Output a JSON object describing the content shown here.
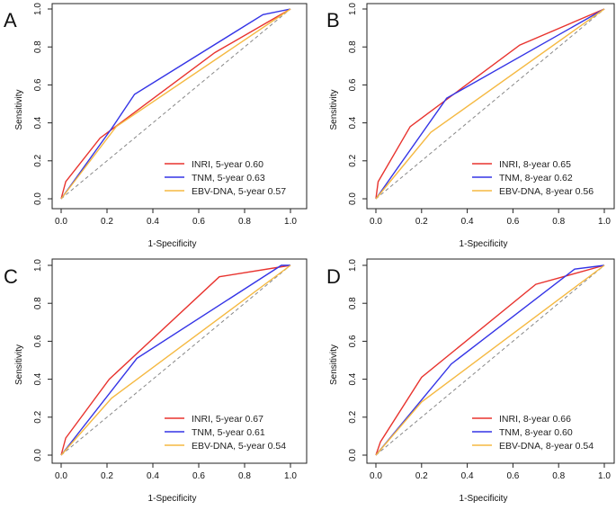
{
  "chart_data": [
    {
      "type": "line",
      "panel_label": "A",
      "xlabel": "1-Specificity",
      "ylabel": "Sensitivity",
      "xlim": [
        0,
        1
      ],
      "ylim": [
        0,
        1
      ],
      "ticks": [
        "0.0",
        "0.2",
        "0.4",
        "0.6",
        "0.8",
        "1.0"
      ],
      "tick_values": [
        0,
        0.2,
        0.4,
        0.6,
        0.8,
        1.0
      ],
      "legend_position": "bottom-right",
      "reference_line": {
        "style": "dashed",
        "points": [
          [
            0,
            0
          ],
          [
            1,
            1
          ]
        ]
      },
      "series": [
        {
          "name": "INRI, 5-year",
          "auc": "0.60",
          "color": "#e8332e",
          "points": [
            [
              0,
              0
            ],
            [
              0.02,
              0.09
            ],
            [
              0.17,
              0.32
            ],
            [
              0.67,
              0.77
            ],
            [
              1,
              1
            ]
          ]
        },
        {
          "name": "TNM, 5-year",
          "auc": "0.63",
          "color": "#3434e6",
          "points": [
            [
              0,
              0
            ],
            [
              0.22,
              0.37
            ],
            [
              0.32,
              0.55
            ],
            [
              0.88,
              0.97
            ],
            [
              1,
              1
            ]
          ]
        },
        {
          "name": "EBV-DNA, 5-year",
          "auc": "0.57",
          "color": "#f5b942",
          "points": [
            [
              0,
              0
            ],
            [
              0.24,
              0.38
            ],
            [
              1,
              1
            ]
          ]
        }
      ]
    },
    {
      "type": "line",
      "panel_label": "B",
      "xlabel": "1-Specificity",
      "ylabel": "Sensitivity",
      "xlim": [
        0,
        1
      ],
      "ylim": [
        0,
        1
      ],
      "ticks": [
        "0.0",
        "0.2",
        "0.4",
        "0.6",
        "0.8",
        "1.0"
      ],
      "tick_values": [
        0,
        0.2,
        0.4,
        0.6,
        0.8,
        1.0
      ],
      "legend_position": "bottom-right",
      "reference_line": {
        "style": "dashed",
        "points": [
          [
            0,
            0
          ],
          [
            1,
            1
          ]
        ]
      },
      "series": [
        {
          "name": "INRI, 8-year",
          "auc": "0.65",
          "color": "#e8332e",
          "points": [
            [
              0,
              0
            ],
            [
              0.01,
              0.09
            ],
            [
              0.15,
              0.38
            ],
            [
              0.63,
              0.81
            ],
            [
              1,
              1
            ]
          ]
        },
        {
          "name": "TNM, 8-year",
          "auc": "0.62",
          "color": "#3434e6",
          "points": [
            [
              0,
              0
            ],
            [
              0.31,
              0.53
            ],
            [
              1,
              1
            ]
          ]
        },
        {
          "name": "EBV-DNA, 8-year",
          "auc": "0.56",
          "color": "#f5b942",
          "points": [
            [
              0,
              0
            ],
            [
              0.24,
              0.35
            ],
            [
              1,
              1
            ]
          ]
        }
      ]
    },
    {
      "type": "line",
      "panel_label": "C",
      "xlabel": "1-Specificity",
      "ylabel": "Sensitivity",
      "xlim": [
        0,
        1
      ],
      "ylim": [
        0,
        1
      ],
      "ticks": [
        "0.0",
        "0.2",
        "0.4",
        "0.6",
        "0.8",
        "1.0"
      ],
      "tick_values": [
        0,
        0.2,
        0.4,
        0.6,
        0.8,
        1.0
      ],
      "legend_position": "bottom-right",
      "reference_line": {
        "style": "dashed",
        "points": [
          [
            0,
            0
          ],
          [
            1,
            1
          ]
        ]
      },
      "series": [
        {
          "name": "INRI, 5-year",
          "auc": "0.67",
          "color": "#e8332e",
          "points": [
            [
              0,
              0
            ],
            [
              0.02,
              0.09
            ],
            [
              0.21,
              0.4
            ],
            [
              0.69,
              0.94
            ],
            [
              1,
              1
            ]
          ]
        },
        {
          "name": "TNM, 5-year",
          "auc": "0.61",
          "color": "#3434e6",
          "points": [
            [
              0,
              0
            ],
            [
              0.33,
              0.51
            ],
            [
              0.96,
              1.0
            ],
            [
              1,
              1
            ]
          ]
        },
        {
          "name": "EBV-DNA, 5-year",
          "auc": "0.54",
          "color": "#f5b942",
          "points": [
            [
              0,
              0
            ],
            [
              0.22,
              0.3
            ],
            [
              1,
              1
            ]
          ]
        }
      ]
    },
    {
      "type": "line",
      "panel_label": "D",
      "xlabel": "1-Specificity",
      "ylabel": "Sensitivity",
      "xlim": [
        0,
        1
      ],
      "ylim": [
        0,
        1
      ],
      "ticks": [
        "0.0",
        "0.2",
        "0.4",
        "0.6",
        "0.8",
        "1.0"
      ],
      "tick_values": [
        0,
        0.2,
        0.4,
        0.6,
        0.8,
        1.0
      ],
      "legend_position": "bottom-right",
      "reference_line": {
        "style": "dashed",
        "points": [
          [
            0,
            0
          ],
          [
            1,
            1
          ]
        ]
      },
      "series": [
        {
          "name": "INRI, 8-year",
          "auc": "0.66",
          "color": "#e8332e",
          "points": [
            [
              0,
              0
            ],
            [
              0.02,
              0.07
            ],
            [
              0.2,
              0.41
            ],
            [
              0.7,
              0.9
            ],
            [
              1,
              1
            ]
          ]
        },
        {
          "name": "TNM, 8-year",
          "auc": "0.60",
          "color": "#3434e6",
          "points": [
            [
              0,
              0
            ],
            [
              0.33,
              0.48
            ],
            [
              0.87,
              0.98
            ],
            [
              1,
              1
            ]
          ]
        },
        {
          "name": "EBV-DNA, 8-year",
          "auc": "0.54",
          "color": "#f5b942",
          "points": [
            [
              0,
              0
            ],
            [
              0.2,
              0.28
            ],
            [
              1,
              1
            ]
          ]
        }
      ]
    }
  ]
}
